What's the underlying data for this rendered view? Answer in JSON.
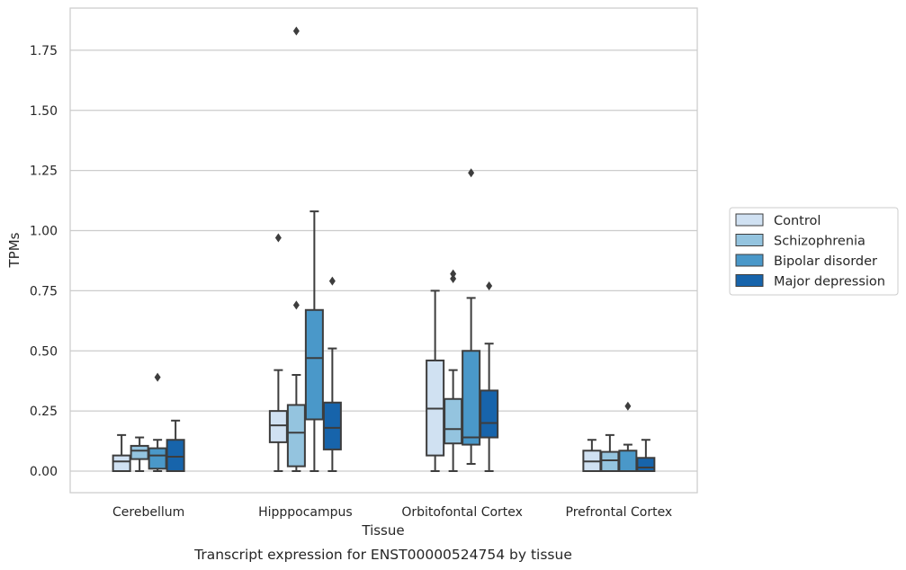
{
  "chart_data": {
    "type": "box",
    "xlabel": "Tissue",
    "ylabel": "TPMs",
    "caption": "Transcript expression for ENST00000524754 by tissue",
    "ylim": [
      -0.09,
      1.94
    ],
    "yticks": [
      0.0,
      0.25,
      0.5,
      0.75,
      1.0,
      1.25,
      1.5,
      1.75
    ],
    "ytick_labels": [
      "0.00",
      "0.25",
      "0.50",
      "0.75",
      "1.00",
      "1.25",
      "1.50",
      "1.75"
    ],
    "grid": "horizontal",
    "legend_placement": "right",
    "categories": [
      "Cerebellum",
      "Hipppocampus",
      "Orbitofontal Cortex",
      "Prefrontal Cortex"
    ],
    "series": [
      {
        "name": "Control",
        "color": "#d0e1f2",
        "boxes": [
          {
            "whisker_low": 0.0,
            "q1": 0.0,
            "median": 0.04,
            "q3": 0.065,
            "whisker_high": 0.15,
            "outliers": []
          },
          {
            "whisker_low": 0.0,
            "q1": 0.12,
            "median": 0.19,
            "q3": 0.25,
            "whisker_high": 0.42,
            "outliers": [
              0.97
            ]
          },
          {
            "whisker_low": 0.0,
            "q1": 0.065,
            "median": 0.26,
            "q3": 0.46,
            "whisker_high": 0.75,
            "outliers": []
          },
          {
            "whisker_low": 0.0,
            "q1": 0.0,
            "median": 0.04,
            "q3": 0.085,
            "whisker_high": 0.13,
            "outliers": []
          }
        ]
      },
      {
        "name": "Schizophrenia",
        "color": "#94c4df",
        "boxes": [
          {
            "whisker_low": 0.0,
            "q1": 0.05,
            "median": 0.085,
            "q3": 0.105,
            "whisker_high": 0.14,
            "outliers": []
          },
          {
            "whisker_low": 0.0,
            "q1": 0.02,
            "median": 0.16,
            "q3": 0.275,
            "whisker_high": 0.4,
            "outliers": [
              0.69,
              1.83
            ]
          },
          {
            "whisker_low": 0.0,
            "q1": 0.115,
            "median": 0.175,
            "q3": 0.3,
            "whisker_high": 0.42,
            "outliers": [
              0.8,
              0.82
            ]
          },
          {
            "whisker_low": 0.0,
            "q1": 0.0,
            "median": 0.045,
            "q3": 0.08,
            "whisker_high": 0.15,
            "outliers": []
          }
        ]
      },
      {
        "name": "Bipolar disorder",
        "color": "#4a98c9",
        "boxes": [
          {
            "whisker_low": 0.0,
            "q1": 0.01,
            "median": 0.065,
            "q3": 0.095,
            "whisker_high": 0.13,
            "outliers": [
              0.39
            ]
          },
          {
            "whisker_low": 0.0,
            "q1": 0.215,
            "median": 0.47,
            "q3": 0.67,
            "whisker_high": 1.08,
            "outliers": []
          },
          {
            "whisker_low": 0.03,
            "q1": 0.11,
            "median": 0.14,
            "q3": 0.5,
            "whisker_high": 0.72,
            "outliers": [
              1.24
            ]
          },
          {
            "whisker_low": 0.0,
            "q1": 0.0,
            "median": 0.0,
            "q3": 0.085,
            "whisker_high": 0.11,
            "outliers": [
              0.27
            ]
          }
        ]
      },
      {
        "name": "Major depression",
        "color": "#1764ab",
        "boxes": [
          {
            "whisker_low": 0.0,
            "q1": 0.0,
            "median": 0.06,
            "q3": 0.13,
            "whisker_high": 0.21,
            "outliers": []
          },
          {
            "whisker_low": 0.0,
            "q1": 0.09,
            "median": 0.18,
            "q3": 0.285,
            "whisker_high": 0.51,
            "outliers": [
              0.79
            ]
          },
          {
            "whisker_low": 0.0,
            "q1": 0.14,
            "median": 0.2,
            "q3": 0.335,
            "whisker_high": 0.53,
            "outliers": [
              0.77
            ]
          },
          {
            "whisker_low": 0.0,
            "q1": 0.0,
            "median": 0.015,
            "q3": 0.055,
            "whisker_high": 0.13,
            "outliers": []
          }
        ]
      }
    ]
  }
}
